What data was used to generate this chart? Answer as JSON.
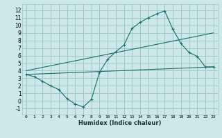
{
  "xlabel": "Humidex (Indice chaleur)",
  "bg_color": "#cce8e8",
  "grid_color": "#a0c8c8",
  "line_color": "#1a6b6b",
  "xlim": [
    -0.5,
    23.5
  ],
  "ylim": [
    -1.8,
    12.8
  ],
  "xticks": [
    0,
    1,
    2,
    3,
    4,
    5,
    6,
    7,
    8,
    9,
    10,
    11,
    12,
    13,
    14,
    15,
    16,
    17,
    18,
    19,
    20,
    21,
    22,
    23
  ],
  "yticks": [
    -1,
    0,
    1,
    2,
    3,
    4,
    5,
    6,
    7,
    8,
    9,
    10,
    11,
    12
  ],
  "line1_x": [
    0,
    1,
    2,
    3,
    4,
    5,
    6,
    7,
    8,
    9,
    10,
    11,
    12,
    13,
    14,
    15,
    16,
    17,
    18,
    19,
    20,
    21,
    22,
    23
  ],
  "line1_y": [
    3.5,
    3.2,
    2.6,
    2.0,
    1.5,
    0.3,
    -0.4,
    -0.8,
    0.2,
    3.8,
    5.5,
    6.5,
    7.4,
    9.6,
    10.4,
    11.0,
    11.5,
    11.9,
    9.5,
    7.6,
    6.4,
    5.9,
    4.5,
    4.5
  ],
  "line2_x": [
    0,
    23
  ],
  "line2_y": [
    3.5,
    4.5
  ],
  "line3_x": [
    0,
    23
  ],
  "line3_y": [
    4.0,
    9.0
  ]
}
